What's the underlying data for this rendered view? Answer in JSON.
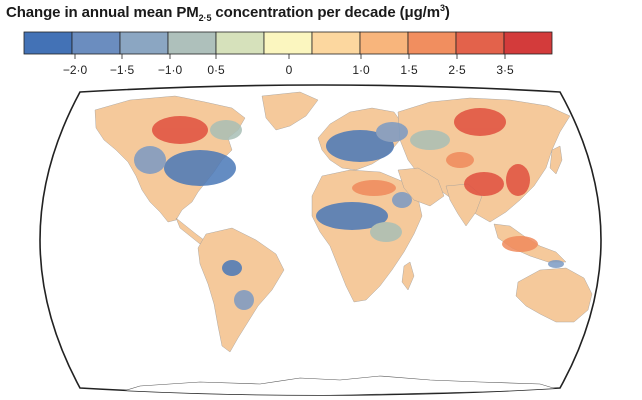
{
  "title": {
    "prefix": "Change in annual mean PM",
    "subscript": "2·5",
    "middle": " concentration per decade (μg/m",
    "superscript": "3",
    "suffix": ")"
  },
  "legend": {
    "colors": [
      "#4372b6",
      "#6b8dbf",
      "#8ba6c2",
      "#aec0bb",
      "#d6e1bb",
      "#fbf6bf",
      "#fcd79f",
      "#f8b57c",
      "#f18e5f",
      "#e3624b",
      "#d33b3b"
    ],
    "labels": [
      "−2·0",
      "−1·5",
      "−1·0",
      "0·5",
      "0",
      "1·0",
      "1·5",
      "2·5",
      "3·5"
    ]
  },
  "colors": {
    "land_base": "#f5c99b",
    "blue_strong": "#4a78b8",
    "blue_mid": "#7b9ac3",
    "green_gray": "#a9bfb6",
    "red_strong": "#e0503f",
    "orange": "#f08a5c",
    "ocean": "#ffffff",
    "outline": "#222222"
  }
}
